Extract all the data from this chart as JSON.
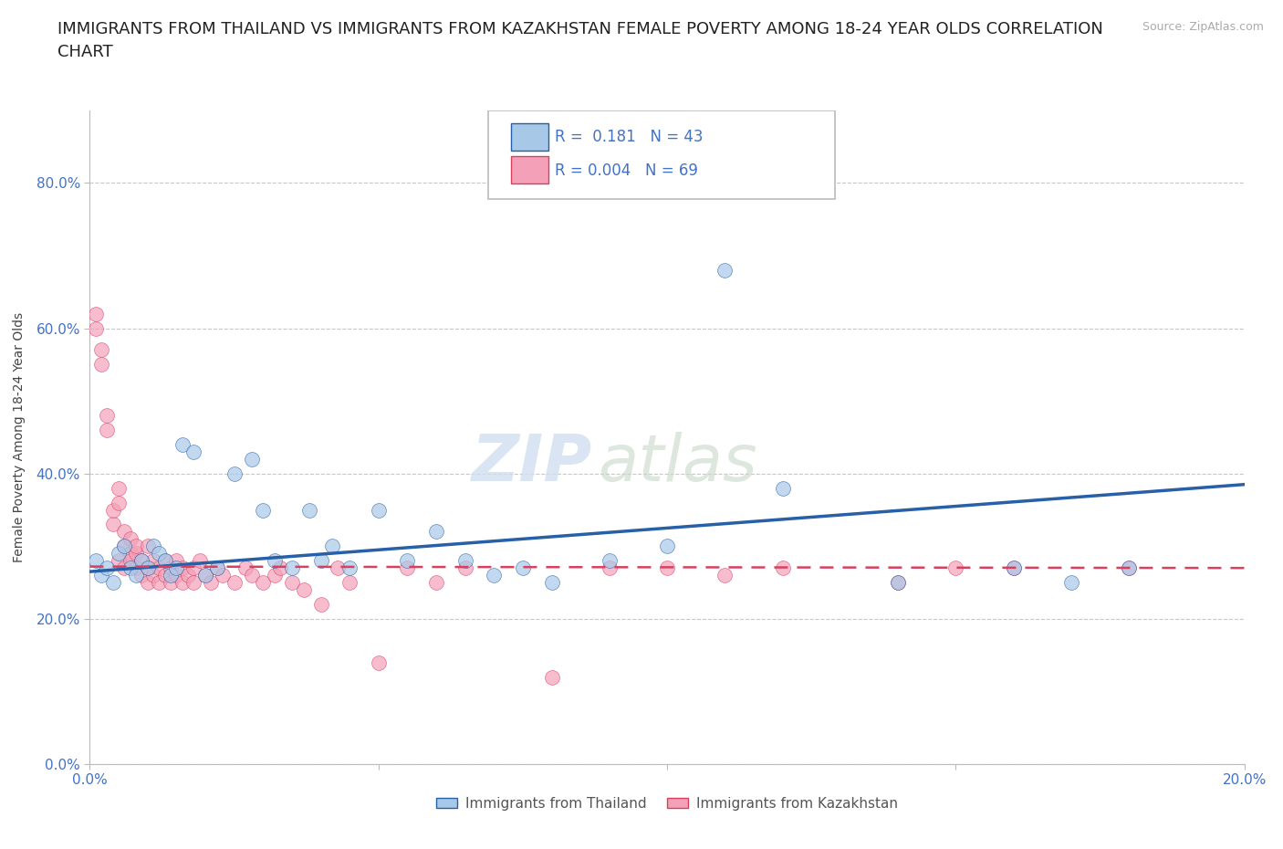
{
  "title": "IMMIGRANTS FROM THAILAND VS IMMIGRANTS FROM KAZAKHSTAN FEMALE POVERTY AMONG 18-24 YEAR OLDS CORRELATION\nCHART",
  "source_text": "Source: ZipAtlas.com",
  "ylabel": "Female Poverty Among 18-24 Year Olds",
  "xlabel": "",
  "watermark_top": "ZIP",
  "watermark_bot": "atlas",
  "xlim": [
    0.0,
    0.2
  ],
  "ylim": [
    0.0,
    0.9
  ],
  "yticks": [
    0.0,
    0.2,
    0.4,
    0.6,
    0.8
  ],
  "ytick_labels": [
    "0.0%",
    "20.0%",
    "40.0%",
    "60.0%",
    "80.0%"
  ],
  "xticks": [
    0.0,
    0.05,
    0.1,
    0.15,
    0.2
  ],
  "xtick_labels": [
    "0.0%",
    "",
    "",
    "",
    "20.0%"
  ],
  "legend_R_thailand": "0.181",
  "legend_N_thailand": "43",
  "legend_R_kazakhstan": "0.004",
  "legend_N_kazakhstan": "69",
  "color_thailand": "#a8c8e8",
  "color_kazakhstan": "#f4a0b8",
  "line_color_thailand": "#2860a8",
  "line_color_kazakhstan": "#d84060",
  "background_color": "#ffffff",
  "title_fontsize": 13,
  "thailand_x": [
    0.001,
    0.002,
    0.003,
    0.004,
    0.005,
    0.006,
    0.007,
    0.008,
    0.009,
    0.01,
    0.011,
    0.012,
    0.013,
    0.014,
    0.015,
    0.016,
    0.018,
    0.02,
    0.022,
    0.025,
    0.028,
    0.03,
    0.032,
    0.035,
    0.038,
    0.04,
    0.042,
    0.045,
    0.05,
    0.055,
    0.06,
    0.065,
    0.07,
    0.075,
    0.08,
    0.09,
    0.1,
    0.11,
    0.12,
    0.14,
    0.16,
    0.17,
    0.18
  ],
  "thailand_y": [
    0.28,
    0.26,
    0.27,
    0.25,
    0.29,
    0.3,
    0.27,
    0.26,
    0.28,
    0.27,
    0.3,
    0.29,
    0.28,
    0.26,
    0.27,
    0.44,
    0.43,
    0.26,
    0.27,
    0.4,
    0.42,
    0.35,
    0.28,
    0.27,
    0.35,
    0.28,
    0.3,
    0.27,
    0.35,
    0.28,
    0.32,
    0.28,
    0.26,
    0.27,
    0.25,
    0.28,
    0.3,
    0.68,
    0.38,
    0.25,
    0.27,
    0.25,
    0.27
  ],
  "kazakhstan_x": [
    0.001,
    0.001,
    0.002,
    0.002,
    0.003,
    0.003,
    0.004,
    0.004,
    0.005,
    0.005,
    0.005,
    0.006,
    0.006,
    0.006,
    0.007,
    0.007,
    0.007,
    0.008,
    0.008,
    0.008,
    0.009,
    0.009,
    0.01,
    0.01,
    0.01,
    0.011,
    0.011,
    0.012,
    0.012,
    0.013,
    0.013,
    0.014,
    0.014,
    0.015,
    0.015,
    0.016,
    0.016,
    0.017,
    0.018,
    0.018,
    0.019,
    0.02,
    0.021,
    0.022,
    0.023,
    0.025,
    0.027,
    0.028,
    0.03,
    0.032,
    0.033,
    0.035,
    0.037,
    0.04,
    0.043,
    0.045,
    0.05,
    0.055,
    0.06,
    0.065,
    0.08,
    0.09,
    0.1,
    0.11,
    0.12,
    0.14,
    0.15,
    0.16,
    0.18
  ],
  "kazakhstan_y": [
    0.6,
    0.62,
    0.57,
    0.55,
    0.46,
    0.48,
    0.33,
    0.35,
    0.36,
    0.38,
    0.28,
    0.3,
    0.27,
    0.32,
    0.29,
    0.31,
    0.28,
    0.29,
    0.27,
    0.3,
    0.26,
    0.28,
    0.3,
    0.27,
    0.25,
    0.28,
    0.26,
    0.27,
    0.25,
    0.28,
    0.26,
    0.27,
    0.25,
    0.28,
    0.26,
    0.27,
    0.25,
    0.26,
    0.27,
    0.25,
    0.28,
    0.26,
    0.25,
    0.27,
    0.26,
    0.25,
    0.27,
    0.26,
    0.25,
    0.26,
    0.27,
    0.25,
    0.24,
    0.22,
    0.27,
    0.25,
    0.14,
    0.27,
    0.25,
    0.27,
    0.12,
    0.27,
    0.27,
    0.26,
    0.27,
    0.25,
    0.27,
    0.27,
    0.27
  ]
}
